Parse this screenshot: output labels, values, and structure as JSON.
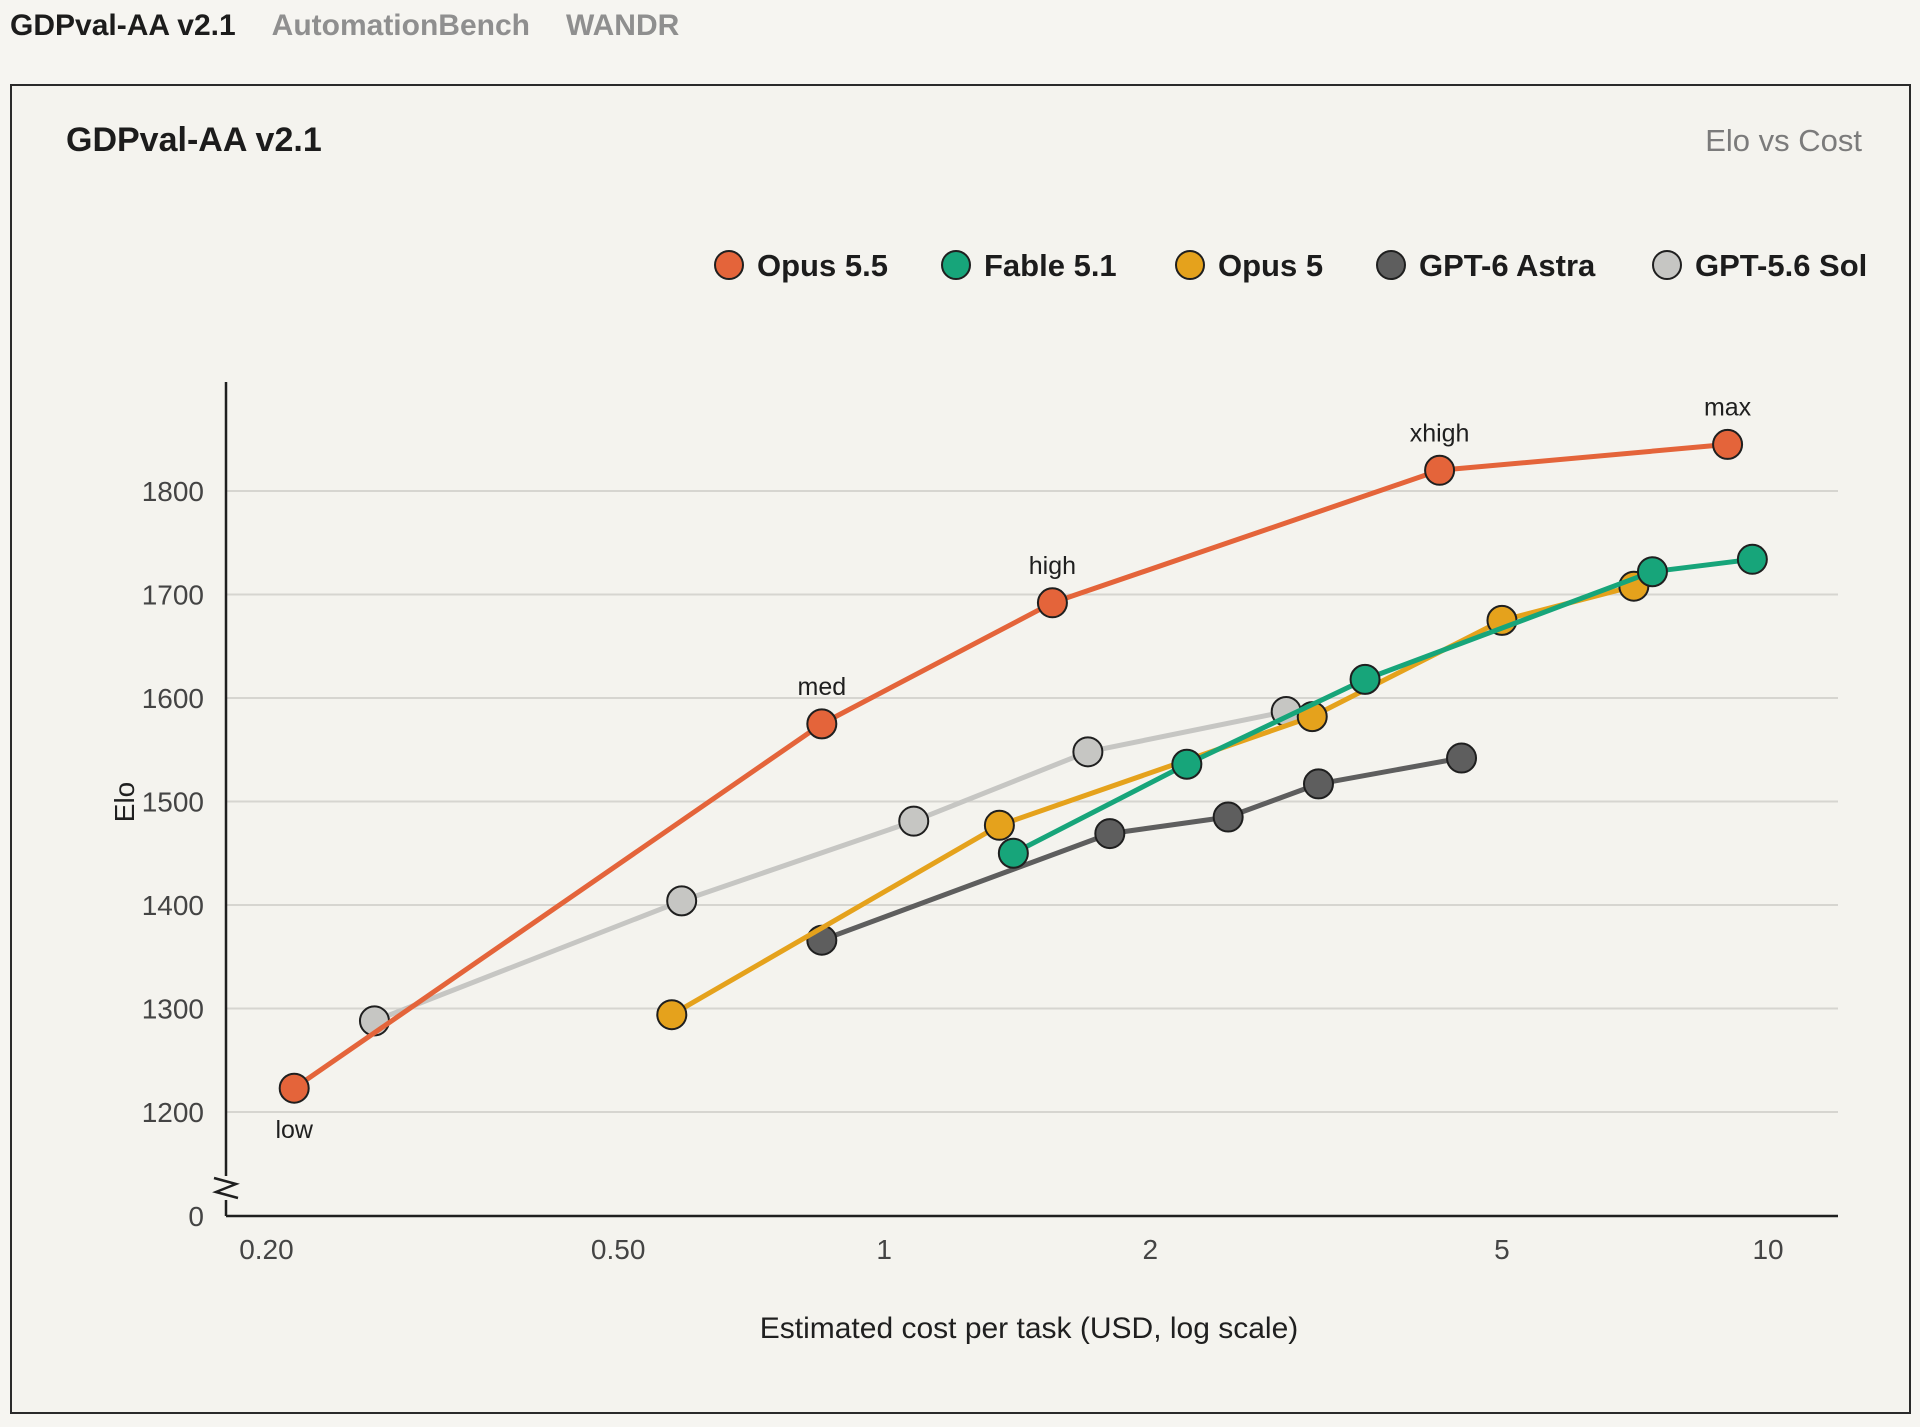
{
  "tabs": [
    {
      "label": "GDPval-AA v2.1",
      "active": true
    },
    {
      "label": "AutomationBench",
      "active": false
    },
    {
      "label": "WANDR",
      "active": false
    }
  ],
  "chart_data": {
    "type": "line",
    "title": "GDPval-AA v2.1",
    "subtitle": "Elo vs Cost",
    "xlabel": "Estimated cost per task (USD, log scale)",
    "ylabel": "Elo",
    "x_scale": "log",
    "xlim": [
      0.18,
      12
    ],
    "ylim": [
      1090,
      1900
    ],
    "y_axis_break": true,
    "y_axis_break_value": "0",
    "x_ticks": [
      {
        "value": 0.2,
        "label": "0.20"
      },
      {
        "value": 0.5,
        "label": "0.50"
      },
      {
        "value": 1,
        "label": "1"
      },
      {
        "value": 2,
        "label": "2"
      },
      {
        "value": 5,
        "label": "5"
      },
      {
        "value": 10,
        "label": "10"
      }
    ],
    "y_ticks": [
      1200,
      1300,
      1400,
      1500,
      1600,
      1700,
      1800
    ],
    "grid": "horizontal",
    "legend_position": "top-right",
    "series": [
      {
        "name": "GPT-5.6 Sol",
        "color": "#c6c6c3",
        "points": [
          [
            0.265,
            1288
          ],
          [
            0.59,
            1404
          ],
          [
            1.08,
            1481
          ],
          [
            1.7,
            1548
          ],
          [
            2.85,
            1587
          ]
        ]
      },
      {
        "name": "GPT-6 Astra",
        "color": "#5e5e5e",
        "points": [
          [
            0.85,
            1366
          ],
          [
            1.8,
            1469
          ],
          [
            2.45,
            1485
          ],
          [
            3.1,
            1517
          ],
          [
            4.5,
            1542
          ]
        ]
      },
      {
        "name": "Opus 5",
        "color": "#e5a21c",
        "points": [
          [
            0.575,
            1294
          ],
          [
            1.35,
            1477
          ],
          [
            3.05,
            1582
          ],
          [
            5.0,
            1675
          ],
          [
            7.05,
            1708
          ]
        ]
      },
      {
        "name": "Fable 5.1",
        "color": "#17a57a",
        "points": [
          [
            1.4,
            1450
          ],
          [
            2.2,
            1536
          ],
          [
            3.5,
            1618
          ],
          [
            7.4,
            1722
          ],
          [
            9.6,
            1734
          ]
        ]
      },
      {
        "name": "Opus 5.5",
        "color": "#e4643a",
        "points": [
          [
            0.215,
            1223
          ],
          [
            0.85,
            1575
          ],
          [
            1.55,
            1692
          ],
          [
            4.25,
            1820
          ],
          [
            9.0,
            1845
          ]
        ],
        "point_labels": [
          "low",
          "med",
          "high",
          "xhigh",
          "max"
        ]
      }
    ],
    "legend": [
      "Opus 5.5",
      "Fable 5.1",
      "Opus 5",
      "GPT-6 Astra",
      "GPT-5.6 Sol"
    ]
  }
}
